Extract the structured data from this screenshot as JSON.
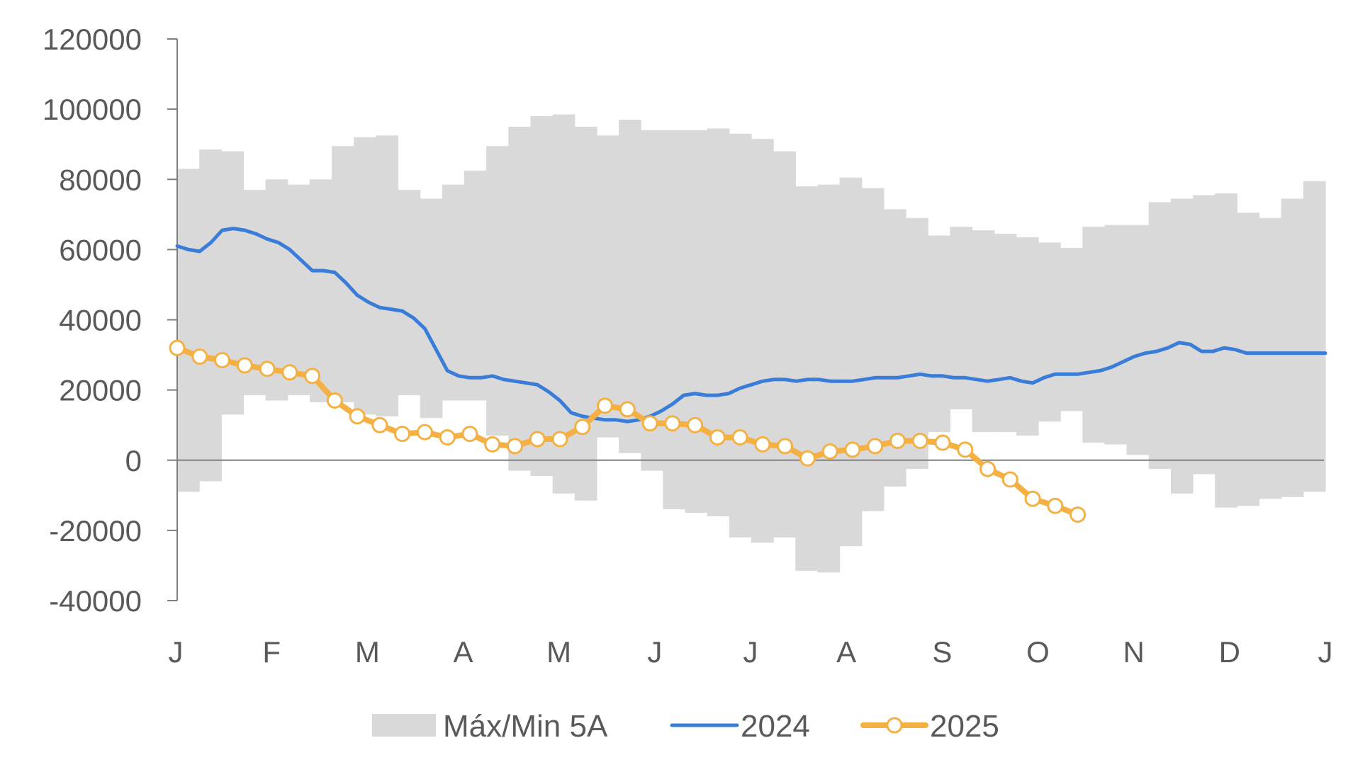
{
  "chart_data": {
    "type": "line",
    "title": "",
    "xlabel": "",
    "ylabel": "",
    "ylim": [
      -40000,
      120000
    ],
    "yticks": [
      "120000",
      "100000",
      "80000",
      "60000",
      "40000",
      "20000",
      "0",
      "-20000",
      "-40000"
    ],
    "ytick_values": [
      120000,
      100000,
      80000,
      60000,
      40000,
      20000,
      0,
      -20000,
      -40000
    ],
    "xticks": [
      "J",
      "F",
      "M",
      "A",
      "M",
      "J",
      "J",
      "A",
      "S",
      "O",
      "N",
      "D",
      "J"
    ],
    "legend_position": "bottom",
    "grid": false,
    "band": {
      "name": "Máx/Min 5A",
      "color": "#d9d9d9",
      "max": [
        83000,
        88500,
        88000,
        77000,
        80000,
        78500,
        80000,
        89500,
        92000,
        92500,
        77000,
        74500,
        78500,
        82500,
        89500,
        95000,
        98000,
        98500,
        95000,
        92500,
        97000,
        94000,
        94000,
        94000,
        94500,
        93000,
        91500,
        88000,
        78000,
        78500,
        80500,
        77500,
        71500,
        69000,
        64000,
        66500,
        65500,
        64500,
        63500,
        62000,
        60500,
        66500,
        67000,
        67000,
        73500,
        74500,
        75500,
        76000,
        70500,
        69000,
        74500,
        79500
      ],
      "min": [
        -9000,
        -6000,
        13000,
        18500,
        17000,
        18500,
        16500,
        16500,
        13000,
        12500,
        18500,
        12000,
        17000,
        17000,
        7000,
        -3000,
        -4500,
        -9500,
        -11500,
        6500,
        2000,
        -3000,
        -14000,
        -15000,
        -16000,
        -22000,
        -23500,
        -22000,
        -31500,
        -32000,
        -24500,
        -14500,
        -7500,
        -2500,
        8000,
        14500,
        8000,
        8000,
        7000,
        11000,
        14000,
        5000,
        4500,
        1500,
        -2500,
        -9500,
        -4000,
        -13500,
        -13000,
        -11000,
        -10500,
        -9000
      ]
    },
    "series": [
      {
        "name": "2024",
        "color": "#3a7dd8",
        "x": [
          0,
          0.5,
          1,
          1.5,
          2,
          2.5,
          3,
          3.5,
          4,
          4.5,
          5,
          5.5,
          6,
          6.5,
          7,
          7.5,
          8,
          8.5,
          9,
          9.5,
          10,
          10.5,
          11,
          11.5,
          12,
          12.5,
          13,
          13.5,
          14,
          14.5,
          15,
          15.5,
          16,
          16.5,
          17,
          17.5,
          18,
          18.5,
          19,
          19.5,
          20,
          20.5,
          21,
          21.5,
          22,
          22.5,
          23,
          23.5,
          24,
          24.5,
          25,
          25.5,
          26,
          26.5,
          27,
          27.5,
          28,
          28.5,
          29,
          29.5,
          30,
          30.5,
          31,
          31.5,
          32,
          32.5,
          33,
          33.5,
          34,
          34.5,
          35,
          35.5,
          36,
          36.5,
          37,
          37.5,
          38,
          38.5,
          39,
          39.5,
          40,
          40.5,
          41,
          41.5,
          42,
          42.5,
          43,
          43.5,
          44,
          44.5,
          45,
          45.5,
          46,
          46.5,
          47,
          47.5,
          48,
          48.5,
          49,
          49.5,
          50,
          50.5,
          51
        ],
        "values": [
          61000,
          60000,
          59500,
          62000,
          65500,
          66000,
          65500,
          64500,
          63000,
          62000,
          60000,
          57000,
          54000,
          54000,
          53500,
          50500,
          47000,
          45000,
          43500,
          43000,
          42500,
          40500,
          37500,
          31500,
          25500,
          24000,
          23500,
          23500,
          24000,
          23000,
          22500,
          22000,
          21500,
          19500,
          17000,
          13500,
          12500,
          12000,
          11500,
          11500,
          11000,
          11500,
          12500,
          14000,
          16000,
          18500,
          19000,
          18500,
          18500,
          19000,
          20500,
          21500,
          22500,
          23000,
          23000,
          22500,
          23000,
          23000,
          22500,
          22500,
          22500,
          23000,
          23500,
          23500,
          23500,
          24000,
          24500,
          24000,
          24000,
          23500,
          23500,
          23000,
          22500,
          23000,
          23500,
          22500,
          22000,
          23500,
          24500,
          24500,
          24500,
          25000,
          25500,
          26500,
          28000,
          29500,
          30500,
          31000,
          32000,
          33500,
          33000,
          31000,
          31000,
          32000,
          31500,
          30500,
          30500,
          30500,
          30500,
          30500,
          30500,
          30500,
          30500
        ]
      },
      {
        "name": "2025",
        "color": "#f4b043",
        "x": [
          0,
          1,
          2,
          3,
          4,
          5,
          6,
          7,
          8,
          9,
          10,
          11,
          12,
          13,
          14,
          15,
          16,
          17,
          18,
          19,
          20,
          21,
          22,
          23,
          24,
          25,
          26,
          27,
          28,
          29,
          30,
          31,
          32,
          33,
          34,
          35,
          36,
          37,
          38,
          39,
          40
        ],
        "values": [
          32000,
          29500,
          28500,
          27000,
          26000,
          25000,
          24000,
          17000,
          12500,
          10000,
          7500,
          8000,
          6500,
          7500,
          4500,
          4000,
          6000,
          6000,
          9500,
          15500,
          14500,
          10500,
          10500,
          10000,
          6500,
          6500,
          4500,
          4000,
          500,
          2500,
          3000,
          4000,
          5500,
          5500,
          5000,
          3000,
          -2500,
          -5500,
          -11000,
          -13000,
          -15500
        ]
      }
    ]
  }
}
